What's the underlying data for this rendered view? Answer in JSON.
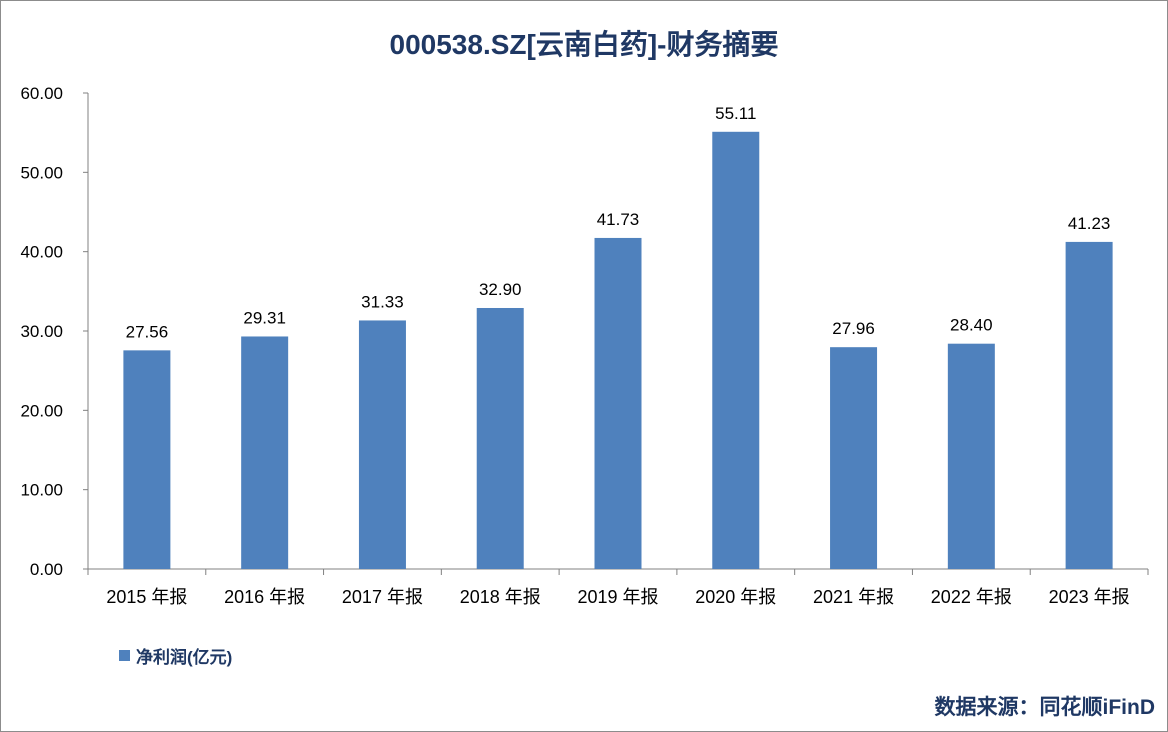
{
  "chart_data": {
    "type": "bar",
    "title": "000538.SZ[云南白药]-财务摘要",
    "categories": [
      "2015 年报",
      "2016 年报",
      "2017 年报",
      "2018 年报",
      "2019 年报",
      "2020 年报",
      "2021 年报",
      "2022 年报",
      "2023 年报"
    ],
    "series": [
      {
        "name": "净利润(亿元)",
        "values": [
          27.56,
          29.31,
          31.33,
          32.9,
          41.73,
          55.11,
          27.96,
          28.4,
          41.23
        ],
        "value_labels": [
          "27.56",
          "29.31",
          "31.33",
          "32.90",
          "41.73",
          "55.11",
          "27.96",
          "28.40",
          "41.23"
        ],
        "color": "#4f81bd"
      }
    ],
    "yticks": [
      "0.00",
      "10.00",
      "20.00",
      "30.00",
      "40.00",
      "50.00",
      "60.00"
    ],
    "ylim": [
      0,
      60
    ],
    "grid": false,
    "legend_position": "bottom-left"
  },
  "source_text": "数据来源：同花顺iFinD",
  "colors": {
    "title": "#1f3864",
    "bar": "#4f81bd",
    "axis": "#808080"
  }
}
